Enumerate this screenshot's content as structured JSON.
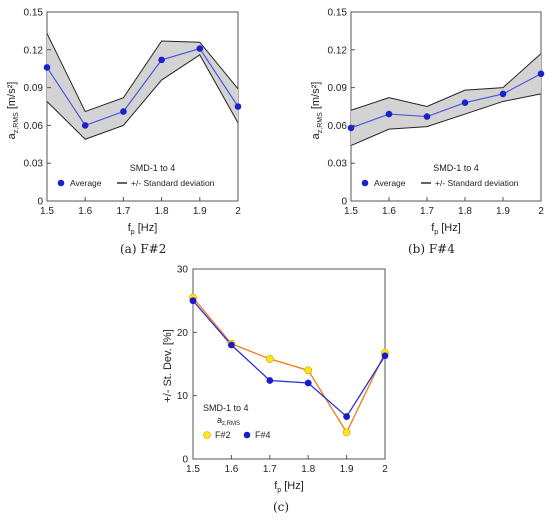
{
  "chart_data": [
    {
      "type": "line",
      "id": "a",
      "panel_caption": "(a) F#2",
      "x": [
        1.5,
        1.6,
        1.7,
        1.8,
        1.9,
        2.0
      ],
      "x_ticks": [
        "1.5",
        "1.6",
        "1.7",
        "1.8",
        "1.9",
        "2"
      ],
      "y_ticks": [
        "0",
        "0.03",
        "0.06",
        "0.09",
        "0.12",
        "0.15"
      ],
      "xlim": [
        1.5,
        2.0
      ],
      "ylim": [
        0,
        0.15
      ],
      "xlabel": {
        "main": "f",
        "sub": "p",
        "unit": "[Hz]"
      },
      "ylabel": {
        "main": "a",
        "sub": "z,RMS",
        "unit": "[m/s²]"
      },
      "legend": {
        "title": "SMD-1 to 4",
        "placement": "bottom-center",
        "entries": [
          "Average",
          "+/- Standard deviation"
        ]
      },
      "series": [
        {
          "name": "Average",
          "values": [
            0.106,
            0.06,
            0.071,
            0.112,
            0.121,
            0.075
          ]
        },
        {
          "name": "+/- Standard deviation",
          "upper": [
            0.133,
            0.071,
            0.082,
            0.127,
            0.126,
            0.089
          ],
          "lower": [
            0.079,
            0.049,
            0.06,
            0.096,
            0.116,
            0.062
          ]
        }
      ],
      "colors": {
        "average": "#4a56d8",
        "marker": "#1a22cc",
        "band": "#d3d3d3"
      }
    },
    {
      "type": "line",
      "id": "b",
      "panel_caption": "(b) F#4",
      "x": [
        1.5,
        1.6,
        1.7,
        1.8,
        1.9,
        2.0
      ],
      "x_ticks": [
        "1.5",
        "1.6",
        "1.7",
        "1.8",
        "1.9",
        "2"
      ],
      "y_ticks": [
        "0",
        "0.03",
        "0.06",
        "0.09",
        "0.12",
        "0.15"
      ],
      "xlim": [
        1.5,
        2.0
      ],
      "ylim": [
        0,
        0.15
      ],
      "xlabel": {
        "main": "f",
        "sub": "p",
        "unit": "[Hz]"
      },
      "ylabel": {
        "main": "a",
        "sub": "z,RMS",
        "unit": "[m/s²]"
      },
      "legend": {
        "title": "SMD-1 to 4",
        "placement": "bottom-center",
        "entries": [
          "Average",
          "+/- Standard deviation"
        ]
      },
      "series": [
        {
          "name": "Average",
          "values": [
            0.058,
            0.069,
            0.067,
            0.078,
            0.085,
            0.101
          ]
        },
        {
          "name": "+/- Standard deviation",
          "upper": [
            0.072,
            0.082,
            0.075,
            0.088,
            0.09,
            0.117
          ],
          "lower": [
            0.044,
            0.057,
            0.059,
            0.069,
            0.079,
            0.085
          ]
        }
      ],
      "colors": {
        "average": "#4a56d8",
        "marker": "#1a22cc",
        "band": "#d3d3d3"
      }
    },
    {
      "type": "line",
      "id": "c",
      "panel_caption": "(c)",
      "x": [
        1.5,
        1.6,
        1.7,
        1.8,
        1.9,
        2.0
      ],
      "x_ticks": [
        "1.5",
        "1.6",
        "1.7",
        "1.8",
        "1.9",
        "2"
      ],
      "y_ticks": [
        "0",
        "10",
        "20",
        "30"
      ],
      "xlim": [
        1.5,
        2.0
      ],
      "ylim": [
        0,
        30
      ],
      "xlabel": {
        "main": "f",
        "sub": "p",
        "unit": "[Hz]"
      },
      "ylabel": {
        "main": "+/- St. Dev.  [%]",
        "sub": "",
        "unit": ""
      },
      "legend": {
        "title": "SMD-1 to 4",
        "subtitle_main": "a",
        "subtitle_sub": "z,RMS",
        "placement": "bottom-left",
        "entries": [
          "F#2",
          "F#4"
        ]
      },
      "series": [
        {
          "name": "F#2",
          "values": [
            25.5,
            18.2,
            15.8,
            14.0,
            4.2,
            16.8
          ]
        },
        {
          "name": "F#4",
          "values": [
            25.0,
            18.0,
            12.4,
            12.0,
            6.7,
            16.3
          ]
        }
      ],
      "colors": {
        "F#2_line": "#f07a1a",
        "F#2_marker": "#ffe61a",
        "F#4_line": "#2a30d0",
        "F#4_marker": "#1a1ccc"
      }
    }
  ]
}
